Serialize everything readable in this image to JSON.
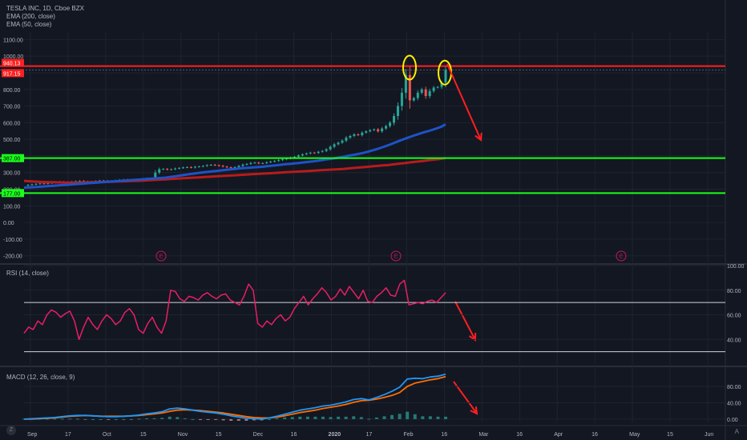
{
  "header": {
    "symbol": "TESLA INC, 1D, Cboe BZX",
    "ema200_label": "EMA (200, close)",
    "ema50_label": "EMA (50, close)"
  },
  "rsi_label": "RSI (14, close)",
  "macd_label": "MACD (12, 26, close, 9)",
  "earnings_badge": "E",
  "zoom_button": "Z",
  "axis_toggle": "A",
  "colors": {
    "background": "#131722",
    "grid": "#1f2330",
    "up_candle": "#26a69a",
    "down_candle": "#ef5350",
    "ema200": "#b71c1c",
    "ema50": "#1e53c7",
    "resistance": "#ff1f1f",
    "support": "#1aff1a",
    "rsi_line": "#e91e63",
    "macd_line": "#2196f3",
    "signal_line": "#ff6d00",
    "arrow": "#ff1f1f",
    "circle": "#ffee00"
  },
  "chart_data": [
    {
      "type": "candlestick",
      "title": "TESLA INC, 1D, Cboe BZX",
      "x_ticks": [
        "Sep",
        "17",
        "Oct",
        "15",
        "Nov",
        "15",
        "Dec",
        "16",
        "2020",
        "17",
        "Feb",
        "16",
        "Mar",
        "16",
        "Apr",
        "16",
        "May",
        "15",
        "Jun"
      ],
      "y_ticks": [
        "1100.00",
        "1000.00",
        "900.00",
        "800.00",
        "700.00",
        "600.00",
        "500.00",
        "400.00",
        "300.00",
        "200.00",
        "100.00",
        "0.00",
        "-100.00",
        "-200.00"
      ],
      "ylim": [
        -235,
        1145
      ],
      "price_labels": [
        {
          "value": 940.13,
          "label": "940.13"
        },
        {
          "value": 917.15,
          "label": "917.15"
        },
        {
          "value": 387.0,
          "label": "387.00"
        },
        {
          "value": 177.0,
          "label": "177.00"
        }
      ],
      "horizontal_lines": [
        {
          "value": 940.13,
          "kind": "resistance"
        },
        {
          "value": 387.0,
          "kind": "support"
        },
        {
          "value": 177.0,
          "kind": "support"
        }
      ],
      "close_prices": [
        226,
        229,
        232,
        235,
        233,
        236,
        240,
        242,
        245,
        243,
        241,
        245,
        248,
        250,
        247,
        244,
        246,
        249,
        252,
        251,
        248,
        250,
        253,
        256,
        258,
        255,
        253,
        257,
        260,
        263,
        266,
        265,
        300,
        320,
        322,
        318,
        320,
        325,
        328,
        331,
        333,
        330,
        335,
        337,
        340,
        345,
        347,
        344,
        341,
        336,
        332,
        330,
        333,
        340,
        348,
        352,
        358,
        360,
        355,
        357,
        362,
        366,
        370,
        375,
        380,
        385,
        390,
        395,
        403,
        410,
        415,
        420,
        418,
        425,
        430,
        440,
        455,
        470,
        480,
        492,
        510,
        520,
        530,
        525,
        540,
        548,
        555,
        560,
        548,
        565,
        580,
        600,
        640,
        700,
        780,
        887,
        734,
        748,
        780,
        800,
        760,
        790,
        811,
        815,
        840,
        917
      ],
      "ema50": [
        210,
        211,
        212,
        214,
        216,
        218,
        220,
        222,
        224,
        226,
        228,
        230,
        232,
        234,
        236,
        238,
        240,
        242,
        244,
        246,
        248,
        250,
        252,
        254,
        256,
        258,
        260,
        262,
        264,
        266,
        268,
        270,
        274,
        278,
        282,
        286,
        290,
        294,
        298,
        301,
        304,
        307,
        310,
        313,
        316,
        319,
        322,
        325,
        327,
        329,
        331,
        333,
        335,
        338,
        341,
        344,
        347,
        350,
        352,
        355,
        358,
        361,
        364,
        367,
        371,
        375,
        379,
        383,
        387,
        392,
        397,
        402,
        407,
        412,
        418,
        425,
        433,
        441,
        450,
        460,
        470,
        481,
        492,
        502,
        512,
        522,
        531,
        540,
        548,
        556,
        565,
        575,
        590
      ],
      "ema200": [
        250,
        248,
        246,
        244,
        243,
        242,
        241,
        240,
        240,
        240,
        240,
        241,
        242,
        243,
        244,
        245,
        246,
        247,
        248,
        249,
        250,
        252,
        254,
        256,
        258,
        260,
        262,
        264,
        266,
        268,
        270,
        272,
        274,
        276,
        278,
        280,
        282,
        284,
        286,
        288,
        290,
        292,
        294,
        296,
        298,
        300,
        302,
        304,
        306,
        308,
        310,
        312,
        314,
        316,
        318,
        320,
        322,
        325,
        328,
        331,
        334,
        337,
        340,
        343,
        346,
        350,
        354,
        358,
        362,
        366,
        370,
        374,
        378,
        382,
        387
      ]
    },
    {
      "type": "line",
      "title": "RSI (14, close)",
      "y_ticks": [
        "100.00",
        "80.00",
        "60.00",
        "40.00"
      ],
      "ylim": [
        20,
        100
      ],
      "reference_lines": [
        70,
        30
      ],
      "values": [
        45,
        50,
        48,
        55,
        52,
        60,
        64,
        62,
        58,
        61,
        63,
        55,
        40,
        50,
        58,
        52,
        48,
        55,
        60,
        57,
        52,
        55,
        62,
        65,
        60,
        48,
        45,
        53,
        58,
        50,
        45,
        55,
        80,
        79,
        73,
        71,
        75,
        74,
        72,
        76,
        78,
        75,
        73,
        76,
        77,
        72,
        70,
        68,
        75,
        85,
        80,
        53,
        50,
        55,
        52,
        57,
        60,
        55,
        58,
        65,
        70,
        75,
        68,
        73,
        77,
        82,
        78,
        72,
        75,
        81,
        76,
        83,
        78,
        73,
        80,
        71,
        70,
        75,
        78,
        82,
        76,
        75,
        85,
        88,
        68,
        69,
        70,
        69,
        71,
        72,
        70,
        74,
        78
      ]
    },
    {
      "type": "line",
      "title": "MACD (12, 26, close, 9)",
      "y_ticks": [
        "80.00",
        "40.00",
        "0.00"
      ],
      "ylim": [
        -8,
        125
      ],
      "series": [
        {
          "role": "macd",
          "values": [
            0,
            1,
            2,
            3,
            4,
            6,
            8,
            9,
            9,
            8,
            7,
            6,
            6,
            7,
            8,
            10,
            13,
            15,
            18,
            25,
            27,
            25,
            22,
            19,
            17,
            15,
            12,
            8,
            5,
            2,
            1,
            0,
            3,
            7,
            12,
            17,
            22,
            25,
            28,
            32,
            34,
            38,
            42,
            48,
            50,
            47,
            53,
            60,
            68,
            78,
            98,
            100,
            99,
            103,
            105,
            110
          ]
        },
        {
          "role": "signal",
          "values": [
            0,
            0,
            1,
            2,
            3,
            5,
            7,
            8,
            9,
            8,
            7,
            7,
            7,
            7,
            8,
            9,
            11,
            13,
            15,
            19,
            22,
            23,
            22,
            21,
            19,
            17,
            15,
            12,
            9,
            6,
            4,
            3,
            3,
            5,
            8,
            12,
            16,
            19,
            22,
            26,
            29,
            32,
            36,
            41,
            45,
            46,
            49,
            53,
            58,
            65,
            80,
            88,
            92,
            96,
            99,
            104
          ]
        },
        {
          "role": "histogram",
          "values": [
            1,
            1,
            1,
            1,
            1,
            1,
            1,
            1,
            0,
            0,
            0,
            -1,
            0,
            0,
            0,
            1,
            2,
            2,
            3,
            6,
            5,
            2,
            0,
            -2,
            -2,
            -2,
            -3,
            -4,
            -4,
            -4,
            -3,
            -3,
            0,
            2,
            4,
            5,
            6,
            6,
            6,
            6,
            5,
            6,
            6,
            7,
            5,
            1,
            4,
            7,
            10,
            13,
            18,
            12,
            7,
            7,
            6,
            6
          ]
        }
      ]
    }
  ]
}
